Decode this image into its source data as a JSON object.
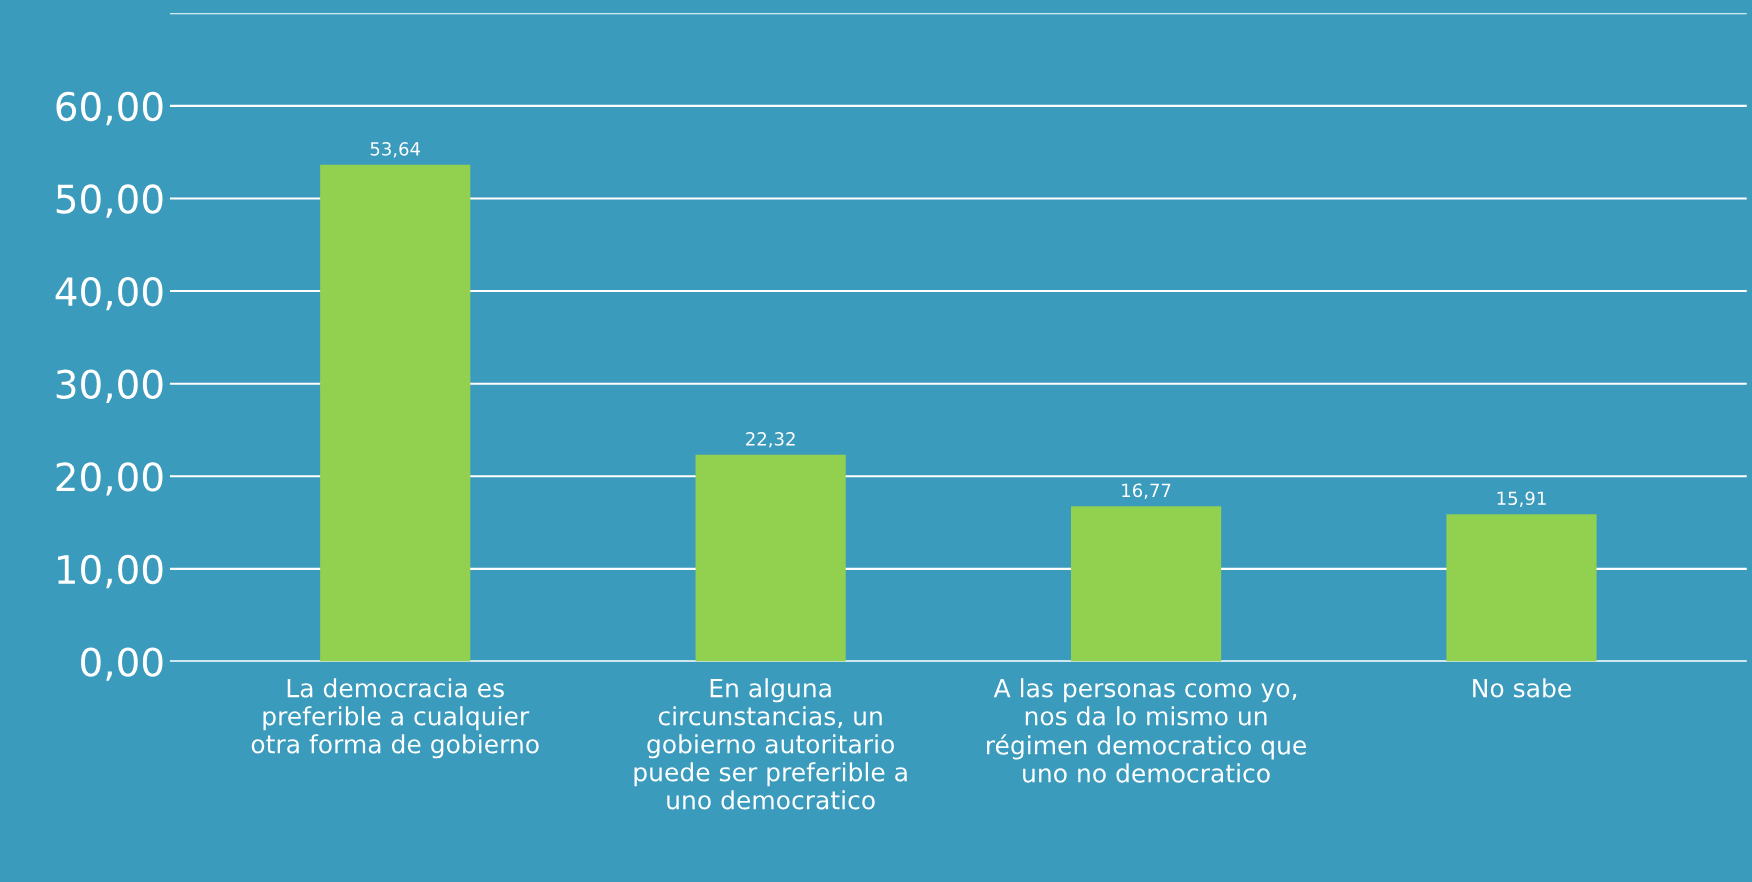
{
  "chart_data": {
    "type": "bar",
    "categories": [
      "La democracia es preferible a cualquier otra forma de gobierno",
      "En alguna circunstancias, un gobierno autoritario puede ser preferible a uno democratico",
      "A las personas como yo, nos da lo mismo un régimen democratico que uno no democratico",
      "No sabe"
    ],
    "values": [
      53.64,
      22.32,
      16.77,
      15.91
    ],
    "value_labels": [
      "53,64",
      "22,32",
      "16,77",
      "15,91"
    ],
    "color": "#92d050",
    "ylim": [
      0,
      70
    ],
    "yticks": [
      {
        "value": 0,
        "label": "0,00"
      },
      {
        "value": 10,
        "label": "10,00"
      },
      {
        "value": 20,
        "label": "20,00"
      },
      {
        "value": 30,
        "label": "30,00"
      },
      {
        "value": 40,
        "label": "40,00"
      },
      {
        "value": 50,
        "label": "50,00"
      },
      {
        "value": 60,
        "label": "60,00"
      },
      {
        "value": 70,
        "label": null
      }
    ],
    "grid": "y"
  }
}
